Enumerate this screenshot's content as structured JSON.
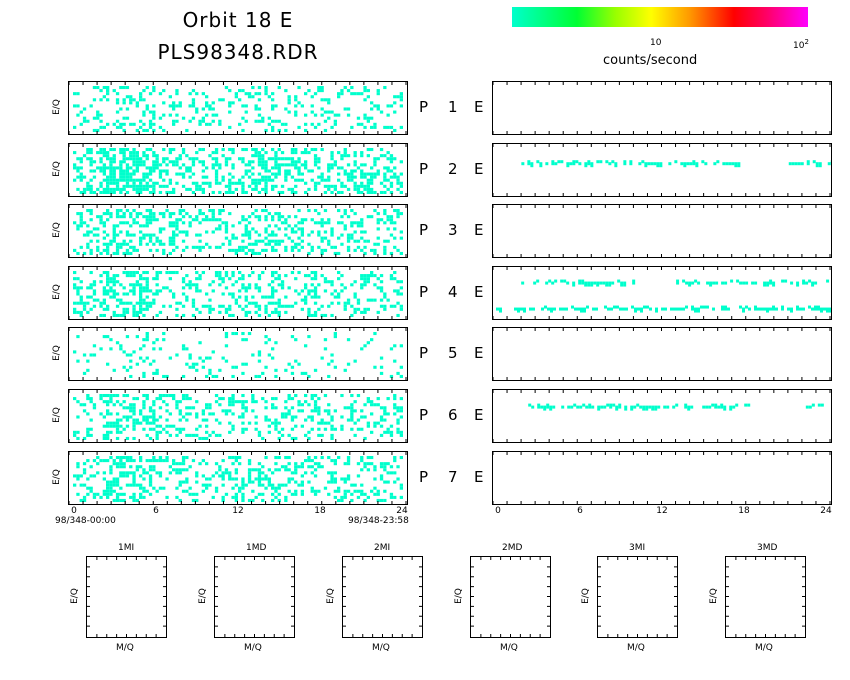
{
  "header": {
    "title_line1": "Orbit 18 E",
    "title_line2": "PLS98348.RDR"
  },
  "colorbar": {
    "tick_10": "10",
    "tick_100_base": "10",
    "tick_100_exp": "2",
    "label": "counts/second",
    "colors": [
      "#00ffcc",
      "#00ff33",
      "#ffff00",
      "#ff0000",
      "#ff00ff"
    ]
  },
  "left_axis": {
    "ticks": [
      "0",
      "6",
      "12",
      "18",
      "24"
    ],
    "start_label": "98/348-00:00",
    "end_label": "98/348-23:58"
  },
  "right_axis": {
    "ticks": [
      "0",
      "6",
      "12",
      "18",
      "24"
    ]
  },
  "ylabel": "E/Q",
  "panel_labels": [
    {
      "p": "P",
      "n": "1",
      "e": "E"
    },
    {
      "p": "P",
      "n": "2",
      "e": "E"
    },
    {
      "p": "P",
      "n": "3",
      "e": "E"
    },
    {
      "p": "P",
      "n": "4",
      "e": "E"
    },
    {
      "p": "P",
      "n": "5",
      "e": "E"
    },
    {
      "p": "P",
      "n": "6",
      "e": "E"
    },
    {
      "p": "P",
      "n": "7",
      "e": "E"
    }
  ],
  "bottom_panels": [
    {
      "title": "1MI",
      "ylabel": "E/Q",
      "xlabel": "M/Q"
    },
    {
      "title": "1MD",
      "ylabel": "E/Q",
      "xlabel": "M/Q"
    },
    {
      "title": "2MI",
      "ylabel": "E/Q",
      "xlabel": "M/Q"
    },
    {
      "title": "2MD",
      "ylabel": "E/Q",
      "xlabel": "M/Q"
    },
    {
      "title": "3MI",
      "ylabel": "E/Q",
      "xlabel": "M/Q"
    },
    {
      "title": "3MD",
      "ylabel": "E/Q",
      "xlabel": "M/Q"
    }
  ],
  "chart_data": {
    "type": "heatmap",
    "x_unit": "hours",
    "xlim": [
      0,
      24
    ],
    "dot_color": "#00ffcc",
    "left_density": [
      0.18,
      0.42,
      0.3,
      0.28,
      0.12,
      0.27,
      0.3
    ],
    "right_bands": [
      [],
      [
        {
          "x0": 1.8,
          "x1": 17.5,
          "y": 0.35
        },
        {
          "x0": 21.0,
          "x1": 24.0,
          "y": 0.35
        }
      ],
      [],
      [
        {
          "x0": 2.0,
          "x1": 10.0,
          "y": 0.28
        },
        {
          "x0": 13.0,
          "x1": 24.0,
          "y": 0.28
        },
        {
          "x0": 0.0,
          "x1": 24.0,
          "y": 0.78
        }
      ],
      [],
      [
        {
          "x0": 2.5,
          "x1": 18.5,
          "y": 0.3
        },
        {
          "x0": 22.0,
          "x1": 24.0,
          "y": 0.3
        }
      ],
      []
    ]
  }
}
